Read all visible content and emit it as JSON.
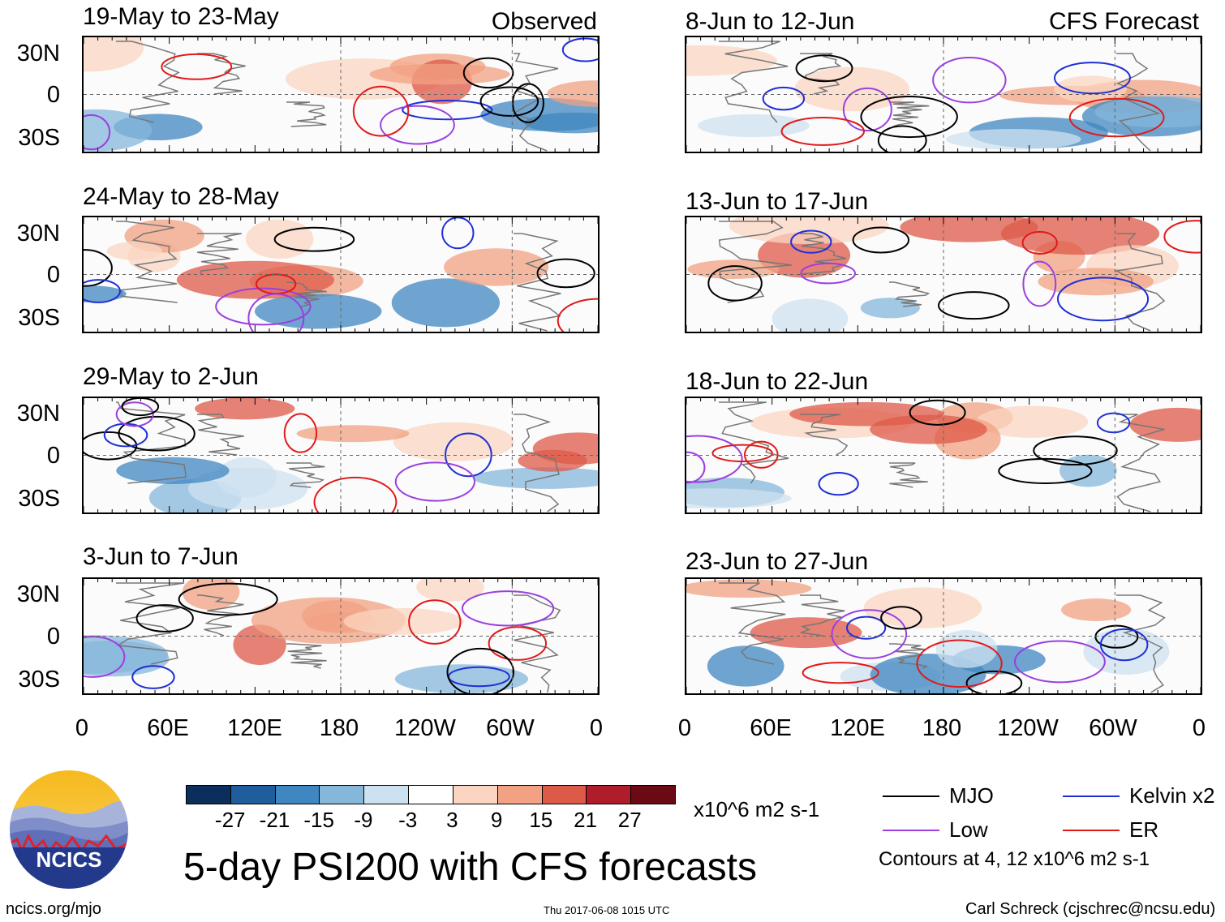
{
  "title": "5-day PSI200 with CFS forecasts",
  "observed_label": "Observed",
  "forecast_label": "CFS Forecast",
  "panels_left": [
    {
      "period": "19-May to 23-May"
    },
    {
      "period": "24-May to 28-May"
    },
    {
      "period": "29-May to 2-Jun"
    },
    {
      "period": "3-Jun to 7-Jun"
    }
  ],
  "panels_right": [
    {
      "period": "8-Jun to 12-Jun"
    },
    {
      "period": "13-Jun to 17-Jun"
    },
    {
      "period": "18-Jun to 22-Jun"
    },
    {
      "period": "23-Jun to 27-Jun"
    }
  ],
  "lat_labels": [
    "30N",
    "0",
    "30S"
  ],
  "lon_labels": [
    "0",
    "60E",
    "120E",
    "180",
    "120W",
    "60W",
    "0"
  ],
  "colorbar": {
    "labels": [
      "-27",
      "-21",
      "-15",
      "-9",
      "-3",
      "3",
      "9",
      "15",
      "21",
      "27"
    ],
    "colors": [
      "#0b2f5c",
      "#1f5d9c",
      "#3f87c0",
      "#85b7db",
      "#cde2f0",
      "#ffffff",
      "#fbd5c2",
      "#f2a283",
      "#dd5a48",
      "#b01d2a",
      "#6b0a14"
    ],
    "units": "x10^6 m2 s-1"
  },
  "legend": {
    "items": [
      {
        "label": "MJO",
        "color": "#000000"
      },
      {
        "label": "Kelvin x2",
        "color": "#1f2fd6"
      },
      {
        "label": "Low",
        "color": "#9b3fe0"
      },
      {
        "label": "ER",
        "color": "#e01a1a"
      }
    ],
    "note": "Contours at 4, 12 x10^6 m2 s-1"
  },
  "logo_text": "NCICS",
  "footer": {
    "url": "ncics.org/mjo",
    "timestamp": "Thu 2017-06-08 1015 UTC",
    "credit": "Carl Schreck (cjschrec@ncsu.edu)"
  }
}
